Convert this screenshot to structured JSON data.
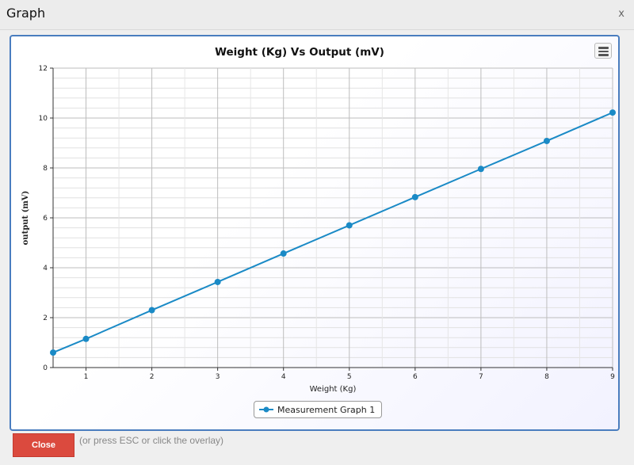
{
  "dialog": {
    "title": "Graph",
    "close_x": "x"
  },
  "footer": {
    "close_label": "Close",
    "hint": "(or press ESC or click the overlay)"
  },
  "chart_data": {
    "type": "line",
    "title": "Weight (Kg) Vs Output (mV)",
    "xlabel": "Weight (Kg)",
    "ylabel": "output (mV)",
    "xlim": [
      0.5,
      9
    ],
    "ylim": [
      0,
      12
    ],
    "xticks": [
      "1",
      "2",
      "3",
      "4",
      "5",
      "6",
      "7",
      "8",
      "9"
    ],
    "yticks": [
      "0",
      "2",
      "4",
      "6",
      "8",
      "10",
      "12"
    ],
    "grid": true,
    "legend_position": "bottom-center",
    "series": [
      {
        "name": "Measurement Graph 1",
        "color": "#1a8ac6",
        "x": [
          0.5,
          1,
          2,
          3,
          4,
          5,
          6,
          7,
          8,
          9
        ],
        "y": [
          0.6,
          1.15,
          2.3,
          3.43,
          4.57,
          5.7,
          6.83,
          7.96,
          9.08,
          10.22
        ]
      }
    ]
  }
}
